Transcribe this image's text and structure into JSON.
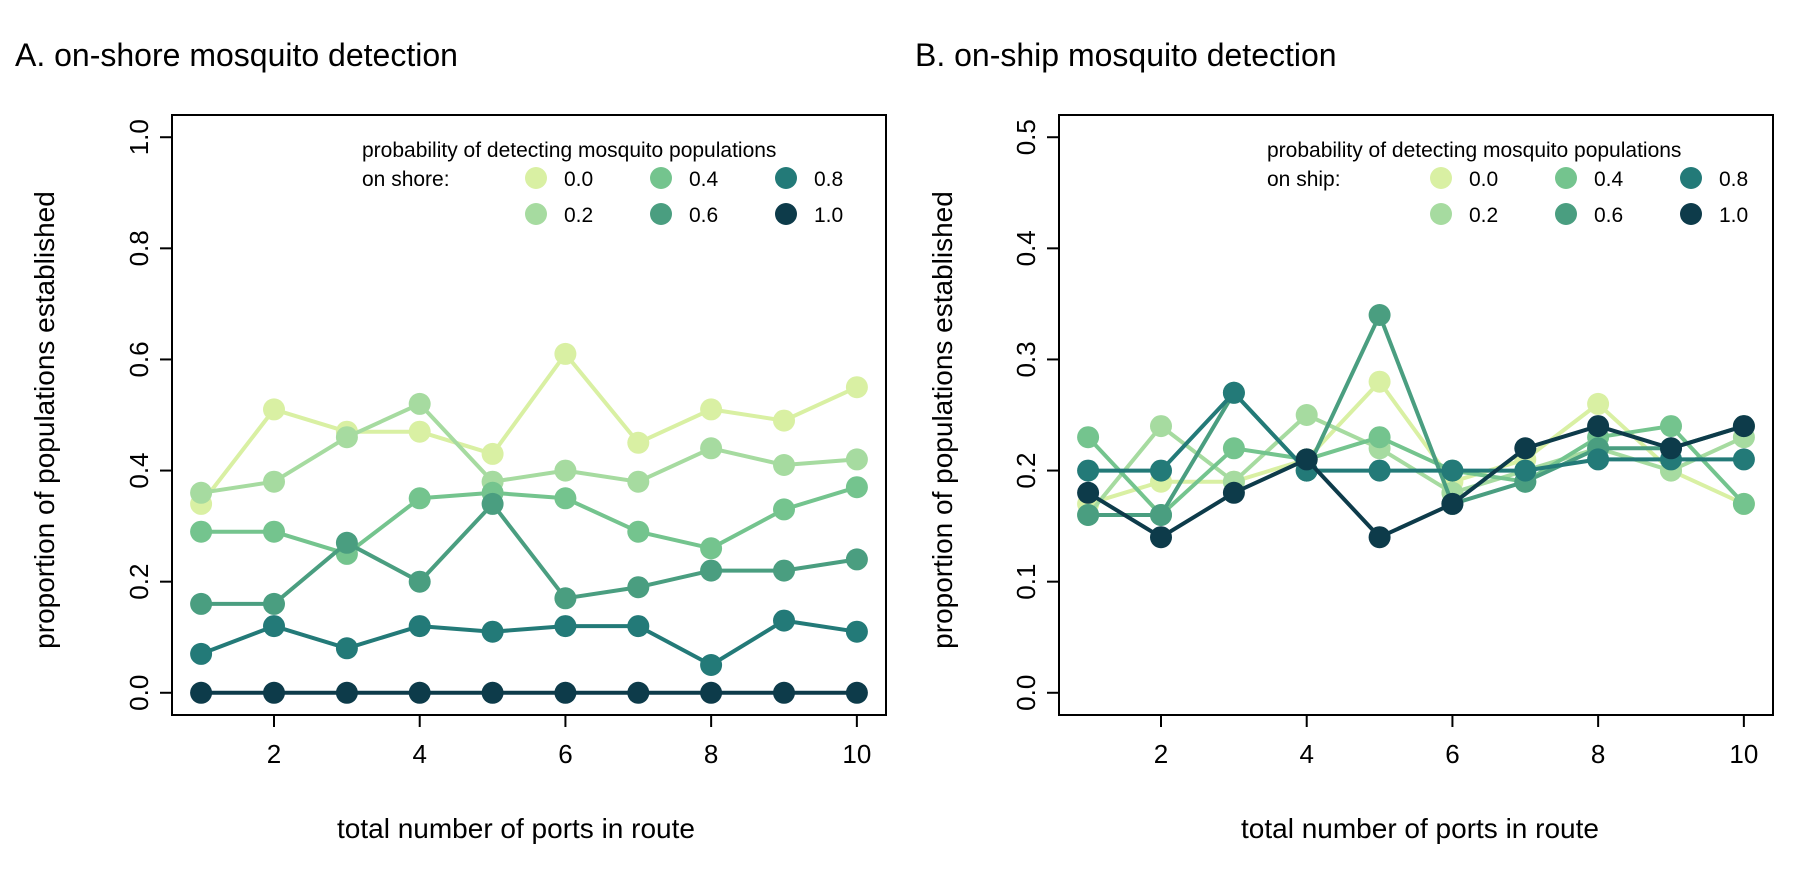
{
  "chart_data": [
    {
      "type": "line",
      "title": "A. on-shore mosquito detection",
      "xlabel": "total number of ports in route",
      "ylabel": "proportion of populations established",
      "xlim": [
        0.6,
        10.4
      ],
      "ylim": [
        -0.04,
        1.04
      ],
      "x_ticks": [
        2,
        4,
        6,
        8,
        10
      ],
      "y_ticks": [
        0.0,
        0.2,
        0.4,
        0.6,
        0.8,
        1.0
      ],
      "x_tick_labels": [
        "2",
        "4",
        "6",
        "8",
        "10"
      ],
      "y_tick_labels": [
        "0.0",
        "0.2",
        "0.4",
        "0.6",
        "0.8",
        "1.0"
      ],
      "legend_title": [
        "probability of detecting mosquito populations",
        "on shore:"
      ],
      "legend_position": "top-right",
      "grid": false,
      "x": [
        1,
        2,
        3,
        4,
        5,
        6,
        7,
        8,
        9,
        10
      ],
      "series": [
        {
          "name": "0.0",
          "color": "#d9f0a3",
          "values": [
            0.34,
            0.51,
            0.47,
            0.47,
            0.43,
            0.61,
            0.45,
            0.51,
            0.49,
            0.55
          ]
        },
        {
          "name": "0.2",
          "color": "#a6dba0",
          "values": [
            0.36,
            0.38,
            0.46,
            0.52,
            0.38,
            0.4,
            0.38,
            0.44,
            0.41,
            0.42
          ]
        },
        {
          "name": "0.4",
          "color": "#74c48e",
          "values": [
            0.29,
            0.29,
            0.25,
            0.35,
            0.36,
            0.35,
            0.29,
            0.26,
            0.33,
            0.37
          ]
        },
        {
          "name": "0.6",
          "color": "#4a9e80",
          "values": [
            0.16,
            0.16,
            0.27,
            0.2,
            0.34,
            0.17,
            0.19,
            0.22,
            0.22,
            0.24
          ]
        },
        {
          "name": "0.8",
          "color": "#237a78",
          "values": [
            0.07,
            0.12,
            0.08,
            0.12,
            0.11,
            0.12,
            0.12,
            0.05,
            0.13,
            0.11
          ]
        },
        {
          "name": "1.0",
          "color": "#0d3b4a",
          "values": [
            0.0,
            0.0,
            0.0,
            0.0,
            0.0,
            0.0,
            0.0,
            0.0,
            0.0,
            0.0
          ]
        }
      ]
    },
    {
      "type": "line",
      "title": "B. on-ship mosquito detection",
      "xlabel": "total number of ports in route",
      "ylabel": "proportion of populations established",
      "xlim": [
        0.6,
        10.4
      ],
      "ylim": [
        -0.02,
        0.52
      ],
      "x_ticks": [
        2,
        4,
        6,
        8,
        10
      ],
      "y_ticks": [
        0.0,
        0.1,
        0.2,
        0.3,
        0.4,
        0.5
      ],
      "x_tick_labels": [
        "2",
        "4",
        "6",
        "8",
        "10"
      ],
      "y_tick_labels": [
        "0.0",
        "0.1",
        "0.2",
        "0.3",
        "0.4",
        "0.5"
      ],
      "legend_title": [
        "probability of detecting mosquito populations",
        "on ship:"
      ],
      "legend_position": "top-right",
      "grid": false,
      "x": [
        1,
        2,
        3,
        4,
        5,
        6,
        7,
        8,
        9,
        10
      ],
      "series": [
        {
          "name": "0.0",
          "color": "#d9f0a3",
          "values": [
            0.17,
            0.19,
            0.19,
            0.21,
            0.28,
            0.19,
            0.21,
            0.26,
            0.2,
            0.17
          ]
        },
        {
          "name": "0.2",
          "color": "#a6dba0",
          "values": [
            0.16,
            0.24,
            0.19,
            0.25,
            0.22,
            0.18,
            0.2,
            0.22,
            0.2,
            0.23
          ]
        },
        {
          "name": "0.4",
          "color": "#74c48e",
          "values": [
            0.23,
            0.16,
            0.22,
            0.21,
            0.23,
            0.2,
            0.19,
            0.23,
            0.24,
            0.17
          ]
        },
        {
          "name": "0.6",
          "color": "#4a9e80",
          "values": [
            0.16,
            0.16,
            0.27,
            0.2,
            0.34,
            0.17,
            0.19,
            0.22,
            0.22,
            0.24
          ]
        },
        {
          "name": "0.8",
          "color": "#237a78",
          "values": [
            0.2,
            0.2,
            0.27,
            0.2,
            0.2,
            0.2,
            0.2,
            0.21,
            0.21,
            0.21
          ]
        },
        {
          "name": "1.0",
          "color": "#0d3b4a",
          "values": [
            0.18,
            0.14,
            0.18,
            0.21,
            0.14,
            0.17,
            0.22,
            0.24,
            0.22,
            0.24
          ]
        }
      ]
    }
  ]
}
